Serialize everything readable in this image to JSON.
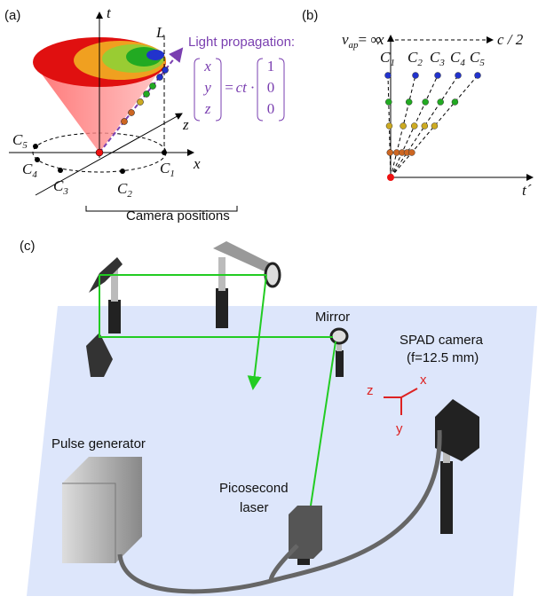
{
  "panel_a": {
    "label": "(a)",
    "axis_t": "t",
    "axis_z": "z",
    "axis_x": "x",
    "line_label": "L",
    "caption": "Light propagation:",
    "equation": {
      "vector": [
        "x",
        "y",
        "z"
      ],
      "equals": "=",
      "factor": "ct ·",
      "direction": [
        "1",
        "0",
        "0"
      ]
    },
    "cameras": [
      {
        "letter": "C",
        "sub": "5"
      },
      {
        "letter": "C",
        "sub": "4"
      },
      {
        "letter": "C",
        "sub": "3"
      },
      {
        "letter": "C",
        "sub": "2"
      },
      {
        "letter": "C",
        "sub": "1"
      }
    ],
    "camera_caption": "Camera positions"
  },
  "panel_b": {
    "label": "(b)",
    "axis_x": "x",
    "axis_t": "t´",
    "velocity": {
      "symbol": "v",
      "sub": "ap",
      "rest": "= ∞"
    },
    "limit": "c / 2",
    "cameras": [
      {
        "letter": "C",
        "sub": "1"
      },
      {
        "letter": "C",
        "sub": "2"
      },
      {
        "letter": "C",
        "sub": "3"
      },
      {
        "letter": "C",
        "sub": "4"
      },
      {
        "letter": "C",
        "sub": "5"
      }
    ]
  },
  "panel_c": {
    "label": "(c)",
    "mirror": "Mirror",
    "camera": [
      "SPAD camera",
      "(f=12.5 mm)"
    ],
    "axes": [
      "z",
      "x",
      "y"
    ],
    "pulse_generator": "Pulse generator",
    "laser": [
      "Picosecond",
      "laser"
    ]
  }
}
